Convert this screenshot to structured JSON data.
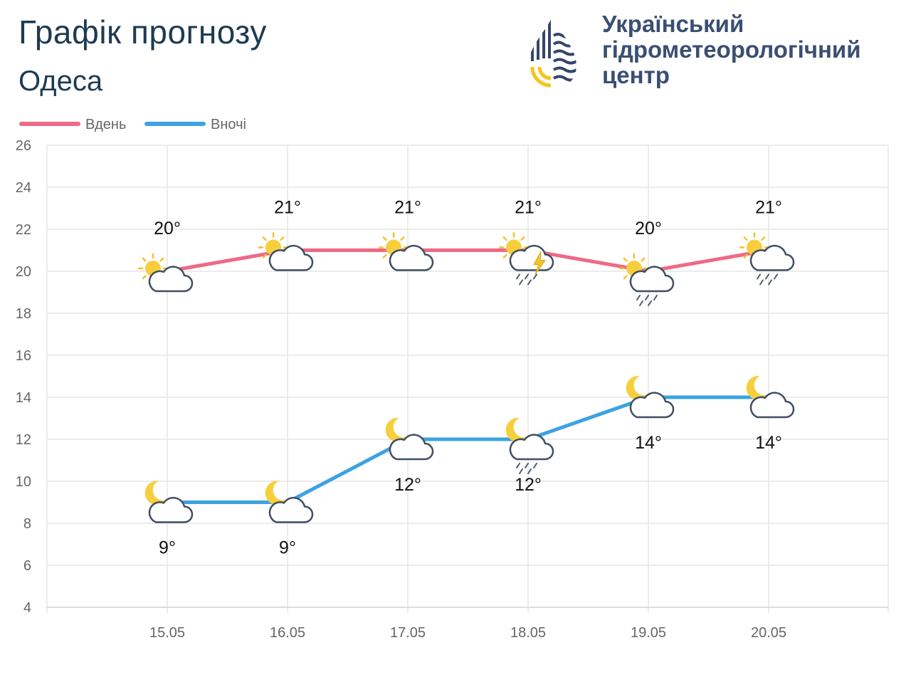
{
  "header": {
    "title": "Графік прогнозу",
    "city": "Одеса"
  },
  "logo": {
    "line1": "Український",
    "line2": "гідрометеорологічний",
    "line3": "центр",
    "colors": {
      "navy": "#34456b",
      "yellow": "#f5c518"
    }
  },
  "chart_data": {
    "type": "line",
    "categories": [
      "15.05",
      "16.05",
      "17.05",
      "18.05",
      "19.05",
      "20.05"
    ],
    "ylim": [
      4,
      26
    ],
    "yticks": [
      4,
      6,
      8,
      10,
      12,
      14,
      16,
      18,
      20,
      22,
      24,
      26
    ],
    "grid": true,
    "legend_position": "top-left",
    "series": [
      {
        "name": "Вдень",
        "color": "#ee6a86",
        "values": [
          20,
          21,
          21,
          21,
          20,
          21
        ],
        "labels": [
          "20°",
          "21°",
          "21°",
          "21°",
          "20°",
          "21°"
        ],
        "icons": [
          "sun-behind-cloud-icon",
          "sun-behind-cloud-icon",
          "sun-behind-cloud-icon",
          "thunderstorm-rain-icon",
          "sun-cloud-rain-icon",
          "sun-cloud-rain-icon"
        ]
      },
      {
        "name": "Вночі",
        "color": "#3da2e3",
        "values": [
          9,
          9,
          12,
          12,
          14,
          14
        ],
        "labels": [
          "9°",
          "9°",
          "12°",
          "12°",
          "14°",
          "14°"
        ],
        "icons": [
          "moon-behind-cloud-icon",
          "moon-behind-cloud-icon",
          "moon-behind-cloud-icon",
          "moon-cloud-rain-icon",
          "moon-behind-cloud-icon",
          "moon-behind-cloud-icon"
        ]
      }
    ]
  }
}
